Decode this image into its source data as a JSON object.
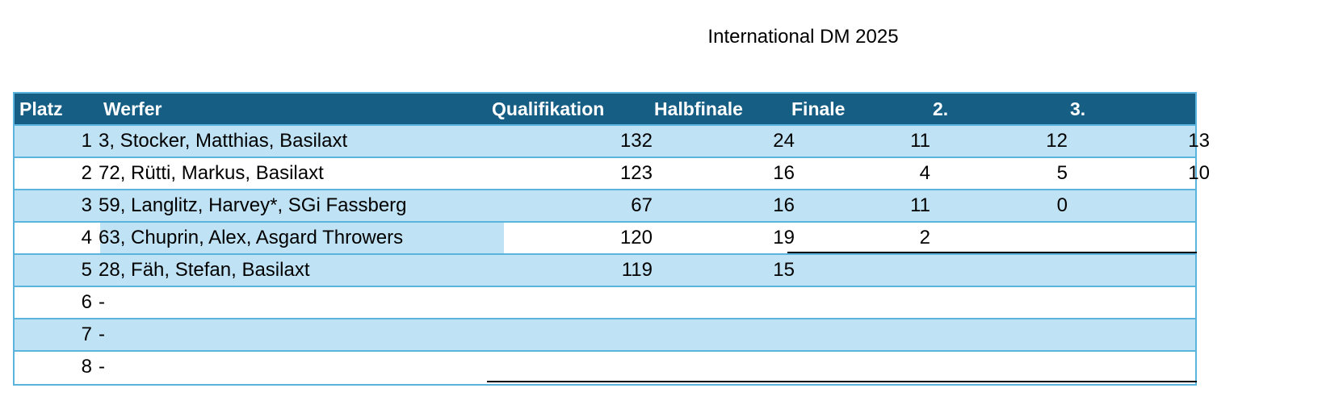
{
  "title": "International DM 2025",
  "headers": {
    "platz": "Platz",
    "werfer": "Werfer",
    "qualifikation": "Qualifikation",
    "halbfinale": "Halbfinale",
    "finale": "Finale",
    "second": "2.",
    "third": "3."
  },
  "rows": [
    {
      "rank": "1",
      "name": "3, Stocker, Matthias, Basilaxt",
      "qual": "132",
      "halb": "24",
      "fin": "11",
      "two": "12",
      "three": "13"
    },
    {
      "rank": "2",
      "name": "72, Rütti, Markus, Basilaxt",
      "qual": "123",
      "halb": "16",
      "fin": "4",
      "two": "5",
      "three": "10"
    },
    {
      "rank": "3",
      "name": "59, Langlitz, Harvey*, SGi Fassberg",
      "qual": "67",
      "halb": "16",
      "fin": "11",
      "two": "0",
      "three": ""
    },
    {
      "rank": "4",
      "name": "63, Chuprin, Alex, Asgard Throwers",
      "qual": "120",
      "halb": "19",
      "fin": "2",
      "two": "",
      "three": ""
    },
    {
      "rank": "5",
      "name": "28, Fäh, Stefan, Basilaxt",
      "qual": "119",
      "halb": "15",
      "fin": "",
      "two": "",
      "three": ""
    },
    {
      "rank": "6",
      "name": "-",
      "qual": "",
      "halb": "",
      "fin": "",
      "two": "",
      "three": ""
    },
    {
      "rank": "7",
      "name": "-",
      "qual": "",
      "halb": "",
      "fin": "",
      "two": "",
      "three": ""
    },
    {
      "rank": "8",
      "name": "-",
      "qual": "",
      "halb": "",
      "fin": "",
      "two": "",
      "three": ""
    }
  ]
}
